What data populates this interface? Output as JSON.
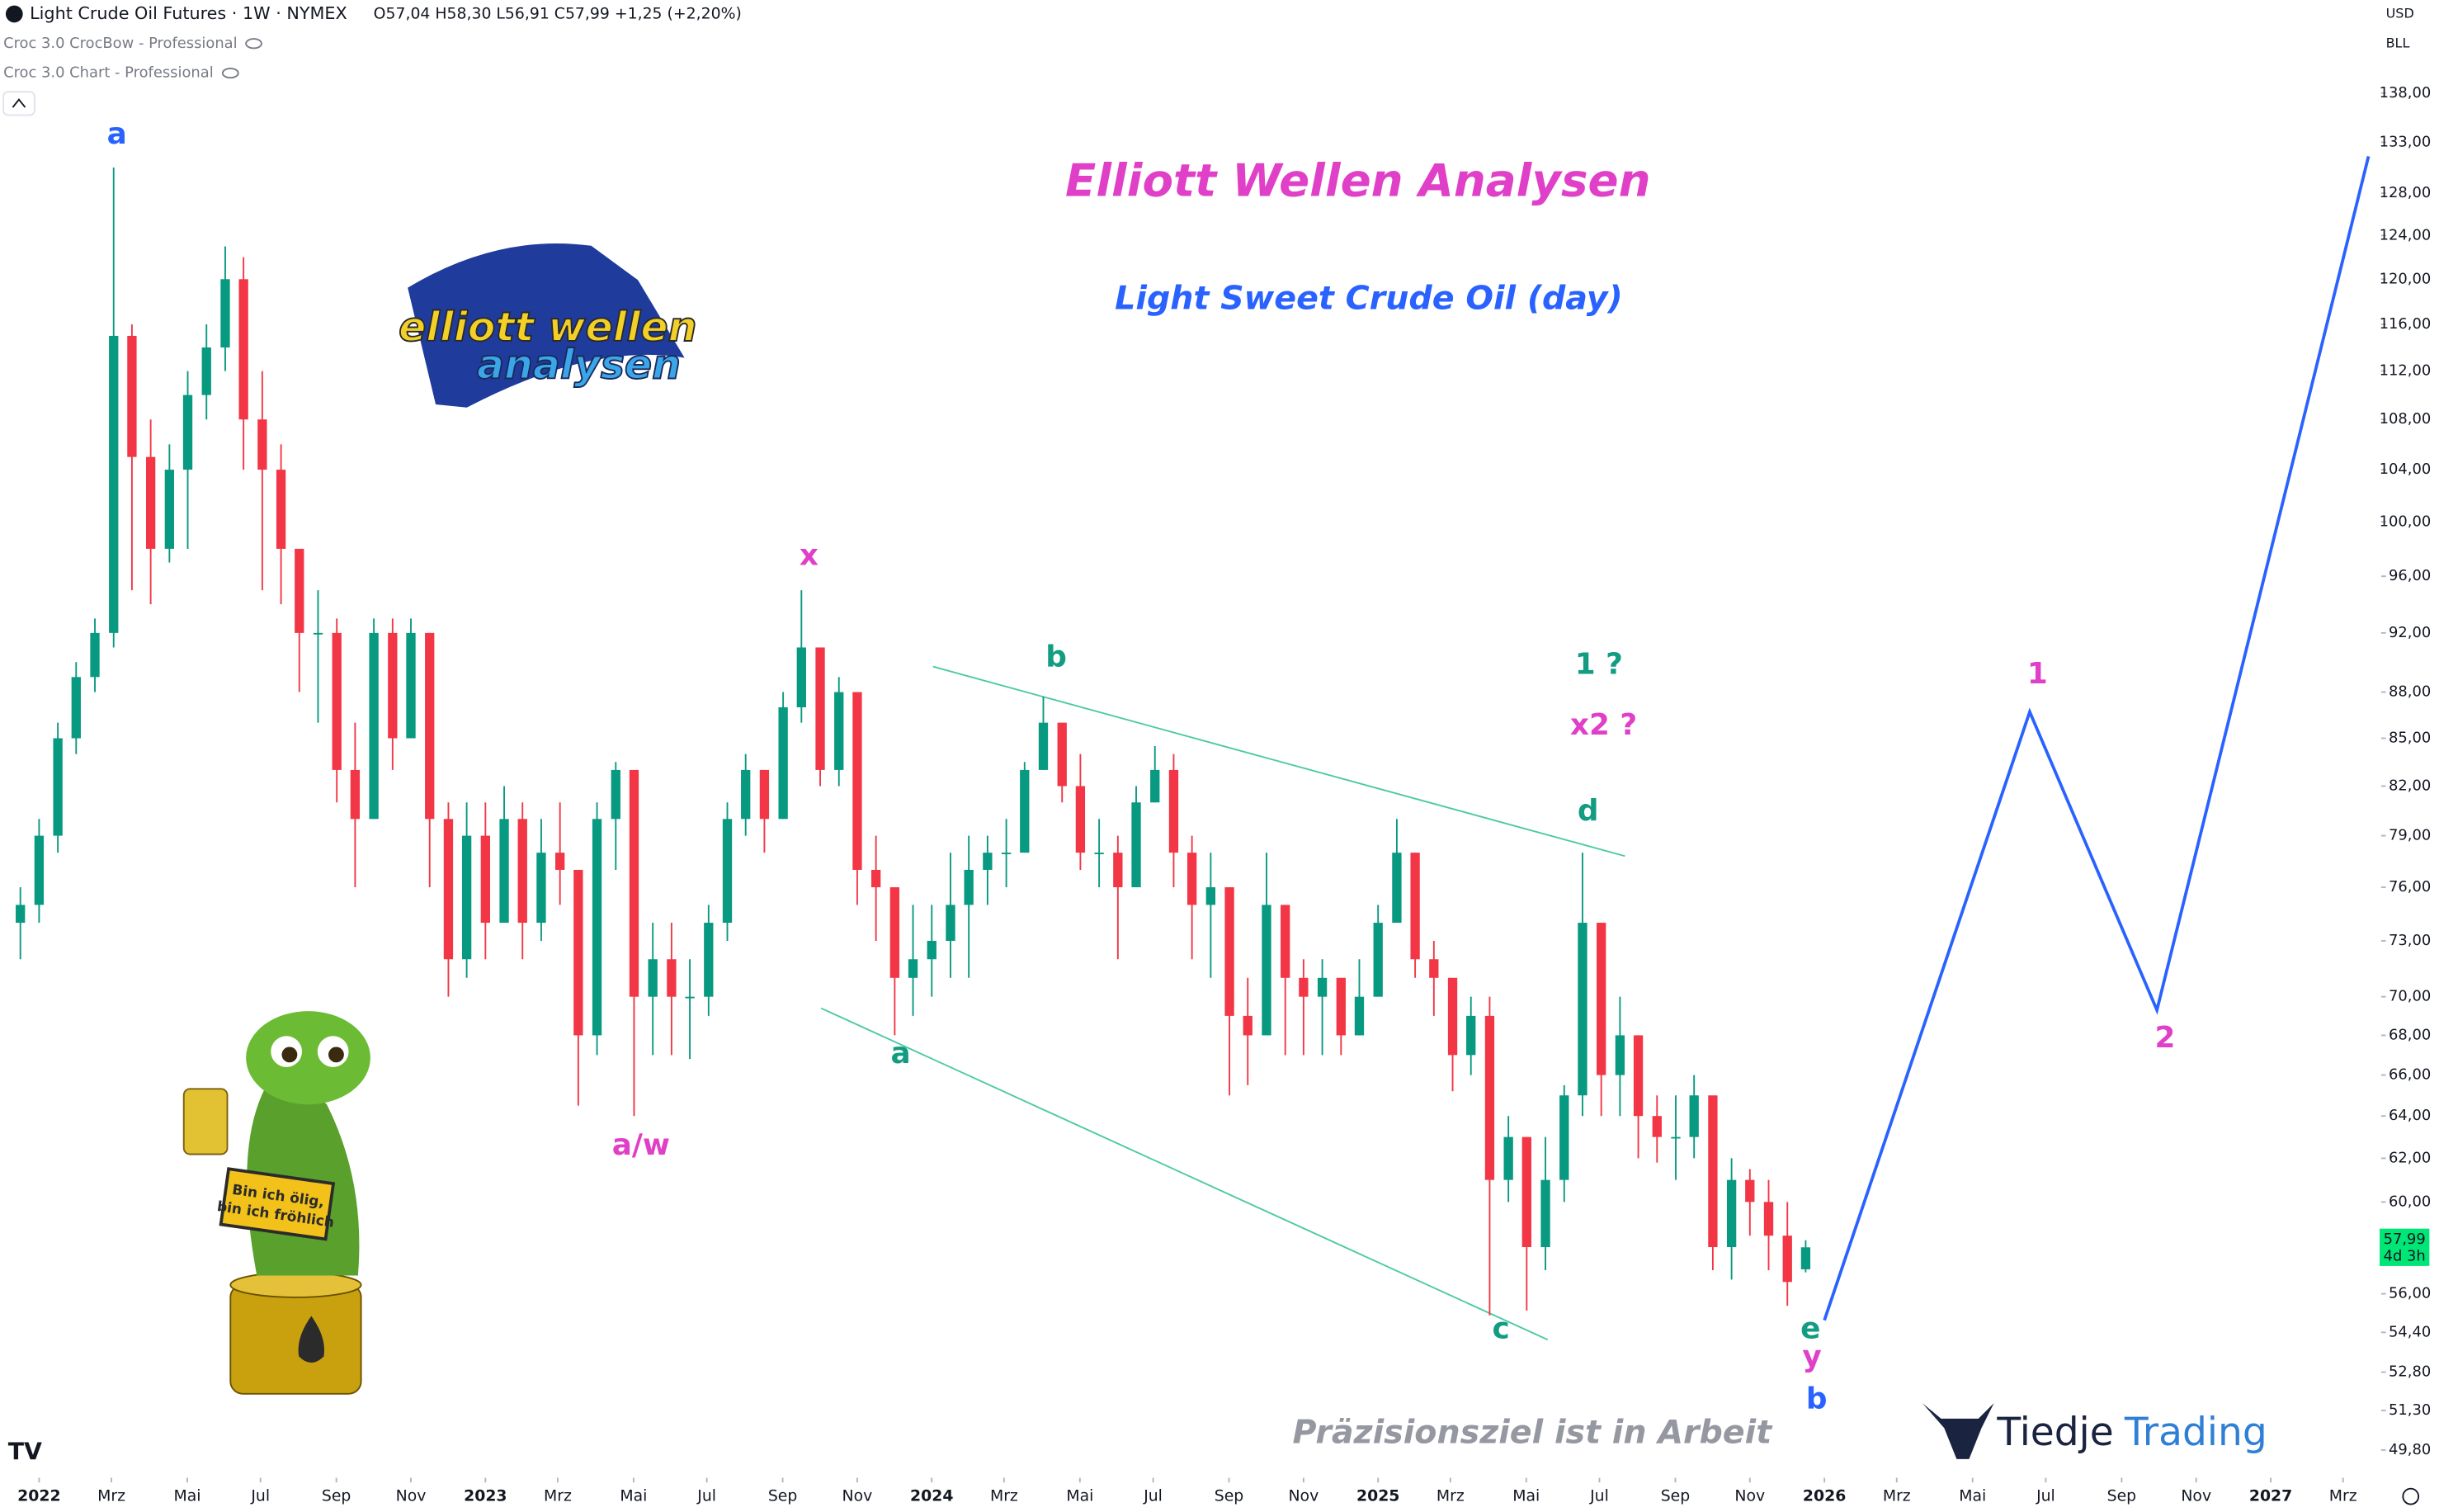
{
  "header": {
    "symbol": "Light Crude Oil Futures · 1W · NYMEX",
    "ohlc": "O57,04 H58,30 L56,91 C57,99 +1,25 (+2,20%)",
    "indicators": [
      "Croc 3.0 CrocBow - Professional",
      "Croc 3.0 Chart - Professional"
    ],
    "currency": "USD",
    "unit": "BLL"
  },
  "logos": {
    "elliott": [
      "elliott wellen",
      "analysen"
    ],
    "tiedje": [
      "Tiedje",
      "Trading"
    ],
    "mascot_sign": [
      "Bin ich ölig,",
      "bin ich fröhlich"
    ]
  },
  "chart_data": {
    "type": "candlestick",
    "title": "Elliott Wellen Analysen",
    "subtitle": "Light Sweet Crude Oil (day)",
    "note": "Präzisionsziel ist in Arbeit",
    "log_scale": true,
    "grid": false,
    "up_color": "#089981",
    "down_color": "#f23645",
    "xlim": [
      2021.913,
      2027.237
    ],
    "ylim": [
      49,
      148
    ],
    "xticks": [
      {
        "value": 2022,
        "label": "2022"
      },
      {
        "value": 2022.162,
        "label": "Mrz"
      },
      {
        "value": 2022.332,
        "label": "Mai"
      },
      {
        "value": 2022.496,
        "label": "Jul"
      },
      {
        "value": 2022.666,
        "label": "Sep"
      },
      {
        "value": 2022.833,
        "label": "Nov"
      },
      {
        "value": 2023,
        "label": "2023"
      },
      {
        "value": 2023.162,
        "label": "Mrz"
      },
      {
        "value": 2023.332,
        "label": "Mai"
      },
      {
        "value": 2023.496,
        "label": "Jul"
      },
      {
        "value": 2023.666,
        "label": "Sep"
      },
      {
        "value": 2023.833,
        "label": "Nov"
      },
      {
        "value": 2024,
        "label": "2024"
      },
      {
        "value": 2024.162,
        "label": "Mrz"
      },
      {
        "value": 2024.332,
        "label": "Mai"
      },
      {
        "value": 2024.496,
        "label": "Jul"
      },
      {
        "value": 2024.666,
        "label": "Sep"
      },
      {
        "value": 2024.833,
        "label": "Nov"
      },
      {
        "value": 2025,
        "label": "2025"
      },
      {
        "value": 2025.162,
        "label": "Mrz"
      },
      {
        "value": 2025.332,
        "label": "Mai"
      },
      {
        "value": 2025.496,
        "label": "Jul"
      },
      {
        "value": 2025.666,
        "label": "Sep"
      },
      {
        "value": 2025.833,
        "label": "Nov"
      },
      {
        "value": 2026,
        "label": "2026"
      },
      {
        "value": 2026.162,
        "label": "Mrz"
      },
      {
        "value": 2026.332,
        "label": "Mai"
      },
      {
        "value": 2026.496,
        "label": "Jul"
      },
      {
        "value": 2026.666,
        "label": "Sep"
      },
      {
        "value": 2026.833,
        "label": "Nov"
      },
      {
        "value": 2027,
        "label": "2027"
      },
      {
        "value": 2027.162,
        "label": "Mrz"
      }
    ],
    "yticks": [
      {
        "value": 138,
        "label": "138,00"
      },
      {
        "value": 133,
        "label": "133,00"
      },
      {
        "value": 128,
        "label": "128,00"
      },
      {
        "value": 124,
        "label": "124,00"
      },
      {
        "value": 120,
        "label": "120,00"
      },
      {
        "value": 116,
        "label": "116,00"
      },
      {
        "value": 112,
        "label": "112,00"
      },
      {
        "value": 108,
        "label": "108,00"
      },
      {
        "value": 104,
        "label": "104,00"
      },
      {
        "value": 100,
        "label": "100,00"
      },
      {
        "value": 96,
        "label": "96,00"
      },
      {
        "value": 92,
        "label": "92,00"
      },
      {
        "value": 88,
        "label": "88,00"
      },
      {
        "value": 85,
        "label": "85,00"
      },
      {
        "value": 82,
        "label": "82,00"
      },
      {
        "value": 79,
        "label": "79,00"
      },
      {
        "value": 76,
        "label": "76,00"
      },
      {
        "value": 73,
        "label": "73,00"
      },
      {
        "value": 70,
        "label": "70,00"
      },
      {
        "value": 68,
        "label": "68,00"
      },
      {
        "value": 66,
        "label": "66,00"
      },
      {
        "value": 64,
        "label": "64,00"
      },
      {
        "value": 62,
        "label": "62,00"
      },
      {
        "value": 60,
        "label": "60,00"
      },
      {
        "value": 56,
        "label": "56,00"
      },
      {
        "value": 54.4,
        "label": "54,40"
      },
      {
        "value": 52.8,
        "label": "52,80"
      },
      {
        "value": 51.3,
        "label": "51,30"
      },
      {
        "value": 49.8,
        "label": "49,80"
      }
    ],
    "last_price": {
      "value": 57.99,
      "label": "57,99",
      "countdown": "4d 3h",
      "color": "#00e676"
    },
    "candles": {
      "x": [
        2021.958,
        2022,
        2022.042,
        2022.083,
        2022.125,
        2022.167,
        2022.208,
        2022.25,
        2022.292,
        2022.333,
        2022.375,
        2022.417,
        2022.458,
        2022.5,
        2022.542,
        2022.583,
        2022.625,
        2022.667,
        2022.708,
        2022.75,
        2022.792,
        2022.833,
        2022.875,
        2022.917,
        2022.958,
        2023,
        2023.042,
        2023.083,
        2023.125,
        2023.167,
        2023.208,
        2023.25,
        2023.292,
        2023.333,
        2023.375,
        2023.417,
        2023.458,
        2023.5,
        2023.542,
        2023.583,
        2023.625,
        2023.667,
        2023.708,
        2023.75,
        2023.792,
        2023.833,
        2023.875,
        2023.917,
        2023.958,
        2024,
        2024.042,
        2024.083,
        2024.125,
        2024.167,
        2024.208,
        2024.25,
        2024.292,
        2024.333,
        2024.375,
        2024.417,
        2024.458,
        2024.5,
        2024.542,
        2024.583,
        2024.625,
        2024.667,
        2024.708,
        2024.75,
        2024.792,
        2024.833,
        2024.875,
        2024.917,
        2024.958,
        2025,
        2025.042,
        2025.083,
        2025.125,
        2025.167,
        2025.208,
        2025.25,
        2025.292,
        2025.333,
        2025.375,
        2025.417,
        2025.458,
        2025.5,
        2025.542,
        2025.583,
        2025.625,
        2025.667,
        2025.708,
        2025.75,
        2025.792,
        2025.833,
        2025.875,
        2025.917,
        2025.958
      ],
      "open": [
        74,
        75,
        79,
        85,
        89,
        92,
        115,
        105,
        98,
        104,
        110,
        114,
        120,
        108,
        104,
        98,
        92,
        92,
        83,
        80,
        92,
        85,
        92,
        80,
        72,
        79,
        74,
        80,
        74,
        78,
        77,
        68,
        80,
        83,
        70,
        72,
        70,
        70,
        74,
        80,
        83,
        80,
        87,
        91,
        83,
        88,
        77,
        76,
        71,
        72,
        73,
        75,
        77,
        78,
        78,
        83,
        86,
        82,
        78,
        78,
        76,
        81,
        83,
        78,
        75,
        76,
        69,
        68,
        75,
        71,
        70,
        71,
        68,
        70,
        74,
        78,
        72,
        71,
        67,
        69,
        61,
        63,
        58,
        61,
        65,
        74,
        66,
        68,
        64,
        63,
        63,
        65,
        58,
        61,
        60,
        58.5,
        57.04
      ],
      "high": [
        76,
        80,
        86,
        90,
        93,
        130.5,
        116,
        108,
        106,
        112,
        116,
        123,
        122,
        112,
        106,
        98,
        95,
        93,
        86,
        93,
        93,
        93,
        92,
        81,
        81,
        81,
        82,
        81,
        80,
        81,
        77,
        81,
        83.5,
        81,
        74,
        74,
        72,
        75,
        81,
        84,
        83,
        88,
        95,
        91,
        89,
        85,
        79,
        76,
        75,
        75,
        78,
        79,
        79,
        80,
        83.5,
        87.7,
        86,
        84,
        80,
        79,
        82,
        84.5,
        84,
        79,
        78,
        76,
        71,
        78,
        75,
        72,
        72,
        71,
        72,
        75,
        80,
        78,
        73,
        71,
        70,
        70,
        64,
        63,
        63,
        65.5,
        78,
        72,
        70,
        68,
        65,
        65,
        66,
        64,
        62,
        61.5,
        61,
        60,
        58.3
      ],
      "low": [
        72,
        74,
        78,
        84,
        88,
        91,
        95,
        94,
        97,
        98,
        108,
        112,
        104,
        95,
        94,
        88,
        86,
        81,
        76,
        80,
        83,
        86,
        76,
        70,
        71,
        72,
        74,
        72,
        73,
        75,
        64.5,
        67,
        77,
        64,
        67,
        67,
        66.8,
        69,
        73,
        79,
        78,
        80,
        86,
        82,
        82,
        75,
        73,
        68,
        69,
        70,
        71,
        71,
        75,
        76,
        78,
        83,
        81,
        77,
        76,
        72,
        76,
        81,
        76,
        72,
        71,
        65,
        65.5,
        68,
        67,
        67,
        67,
        67,
        68,
        70,
        74,
        71,
        69,
        65.2,
        66,
        55.1,
        60,
        55.3,
        57,
        60,
        64,
        64,
        64,
        62,
        61.8,
        61,
        62,
        57,
        56.6,
        58.5,
        57,
        55.5,
        56.91
      ],
      "close": [
        75,
        79,
        85,
        89,
        92,
        115,
        105,
        98,
        104,
        110,
        114,
        120,
        108,
        104,
        98,
        92,
        92,
        83,
        80,
        92,
        85,
        92,
        80,
        72,
        79,
        74,
        80,
        74,
        78,
        77,
        68,
        80,
        83,
        70,
        72,
        70,
        70,
        74,
        80,
        83,
        80,
        87,
        91,
        83,
        88,
        77,
        76,
        71,
        72,
        73,
        75,
        77,
        78,
        78,
        83,
        86,
        82,
        78,
        78,
        76,
        81,
        83,
        78,
        75,
        76,
        69,
        68,
        75,
        71,
        70,
        71,
        68,
        70,
        74,
        78,
        72,
        71,
        67,
        69,
        61,
        63,
        58,
        61,
        65,
        74,
        66,
        68,
        64,
        63,
        63,
        65,
        58,
        61,
        60,
        58.5,
        56.5,
        57.99
      ]
    },
    "projection": {
      "color": "#2962ff",
      "x": [
        2026.0,
        2026.46,
        2026.745,
        2027.219
      ],
      "values": [
        54.9,
        86.7,
        69.3,
        131.6
      ]
    },
    "channels": [
      {
        "color": "#4dc9a6",
        "x": [
          2024.003,
          2025.553
        ],
        "values": [
          89.7,
          77.8
        ]
      },
      {
        "color": "#4dc9a6",
        "x": [
          2023.752,
          2025.38
        ],
        "values": [
          69.4,
          54.1
        ]
      }
    ],
    "annotations": [
      {
        "text": "a",
        "color": "#2962ff"
      },
      {
        "text": "x",
        "color": "#e040c8"
      },
      {
        "text": "a/w",
        "color": "#e040c8"
      },
      {
        "text": "b",
        "color": "#129c82"
      },
      {
        "text": "a",
        "color": "#129c82"
      },
      {
        "text": "1 ?",
        "color": "#129c82"
      },
      {
        "text": "x2 ?",
        "color": "#e040c8"
      },
      {
        "text": "d",
        "color": "#129c82"
      },
      {
        "text": "c",
        "color": "#129c82"
      },
      {
        "text": "e",
        "color": "#129c82"
      },
      {
        "text": "y",
        "color": "#e040c8"
      },
      {
        "text": "b",
        "color": "#2962ff"
      },
      {
        "text": "1",
        "color": "#e040c8"
      },
      {
        "text": "2",
        "color": "#e040c8"
      }
    ]
  }
}
